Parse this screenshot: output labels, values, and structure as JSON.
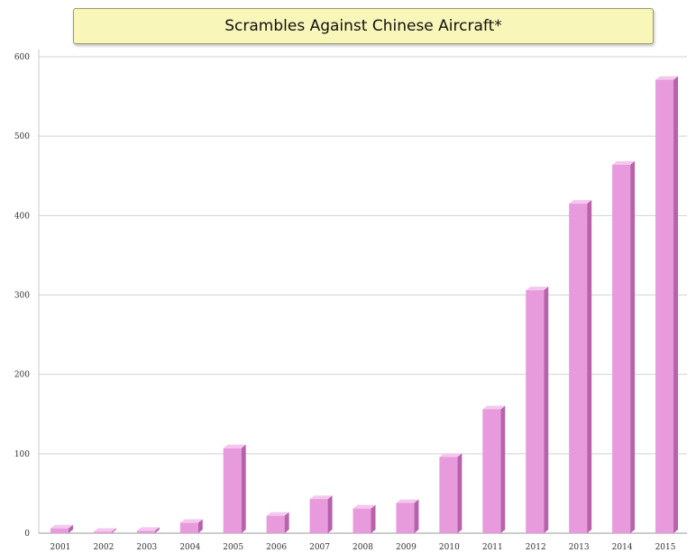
{
  "chart_data": {
    "type": "bar",
    "title": "Scrambles Against Chinese Aircraft*",
    "categories": [
      "2001",
      "2002",
      "2003",
      "2004",
      "2005",
      "2006",
      "2007",
      "2008",
      "2009",
      "2010",
      "2011",
      "2012",
      "2013",
      "2014",
      "2015"
    ],
    "values": [
      6,
      1,
      3,
      13,
      107,
      22,
      43,
      31,
      38,
      96,
      156,
      306,
      415,
      464,
      571
    ],
    "ylim": [
      0,
      600
    ],
    "yticks": [
      0,
      100,
      200,
      300,
      400,
      500,
      600
    ],
    "grid": true,
    "bar_color": "#e79bdd",
    "bar_side_color": "#b762ab",
    "bar_top_color": "#f4c8ee"
  }
}
